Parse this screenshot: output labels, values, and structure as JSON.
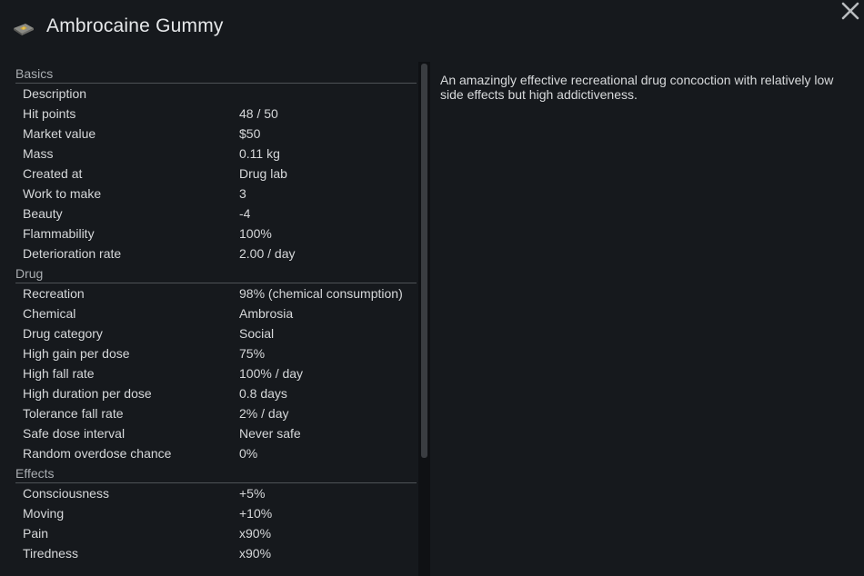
{
  "window": {
    "title": "Ambrocaine Gummy",
    "thing_icon": "drug-package-icon",
    "close_icon": "close-icon"
  },
  "sections": [
    {
      "title": "Basics",
      "rows": [
        {
          "label": "Description",
          "value": ""
        },
        {
          "label": "Hit points",
          "value": "48 / 50"
        },
        {
          "label": "Market value",
          "value": "$50"
        },
        {
          "label": "Mass",
          "value": "0.11 kg"
        },
        {
          "label": "Created at",
          "value": "Drug lab"
        },
        {
          "label": "Work to make",
          "value": "3"
        },
        {
          "label": "Beauty",
          "value": "-4"
        },
        {
          "label": "Flammability",
          "value": "100%"
        },
        {
          "label": "Deterioration rate",
          "value": "2.00 / day"
        }
      ]
    },
    {
      "title": "Drug",
      "rows": [
        {
          "label": "Recreation",
          "value": "98% (chemical consumption)"
        },
        {
          "label": "Chemical",
          "value": "Ambrosia"
        },
        {
          "label": "Drug category",
          "value": "Social"
        },
        {
          "label": "High gain per dose",
          "value": "75%"
        },
        {
          "label": "High fall rate",
          "value": "100% / day"
        },
        {
          "label": "High duration per dose",
          "value": "0.8 days"
        },
        {
          "label": "Tolerance fall rate",
          "value": "2% / day"
        },
        {
          "label": "Safe dose interval",
          "value": "Never safe"
        },
        {
          "label": "Random overdose chance",
          "value": "0%"
        }
      ]
    },
    {
      "title": "Effects",
      "rows": [
        {
          "label": "Consciousness",
          "value": "+5%"
        },
        {
          "label": "Moving",
          "value": "+10%"
        },
        {
          "label": "Pain",
          "value": "x90%"
        },
        {
          "label": "Tiredness",
          "value": "x90%"
        }
      ]
    }
  ],
  "description": "An amazingly effective recreational drug concoction with relatively low side effects but high addictiveness."
}
